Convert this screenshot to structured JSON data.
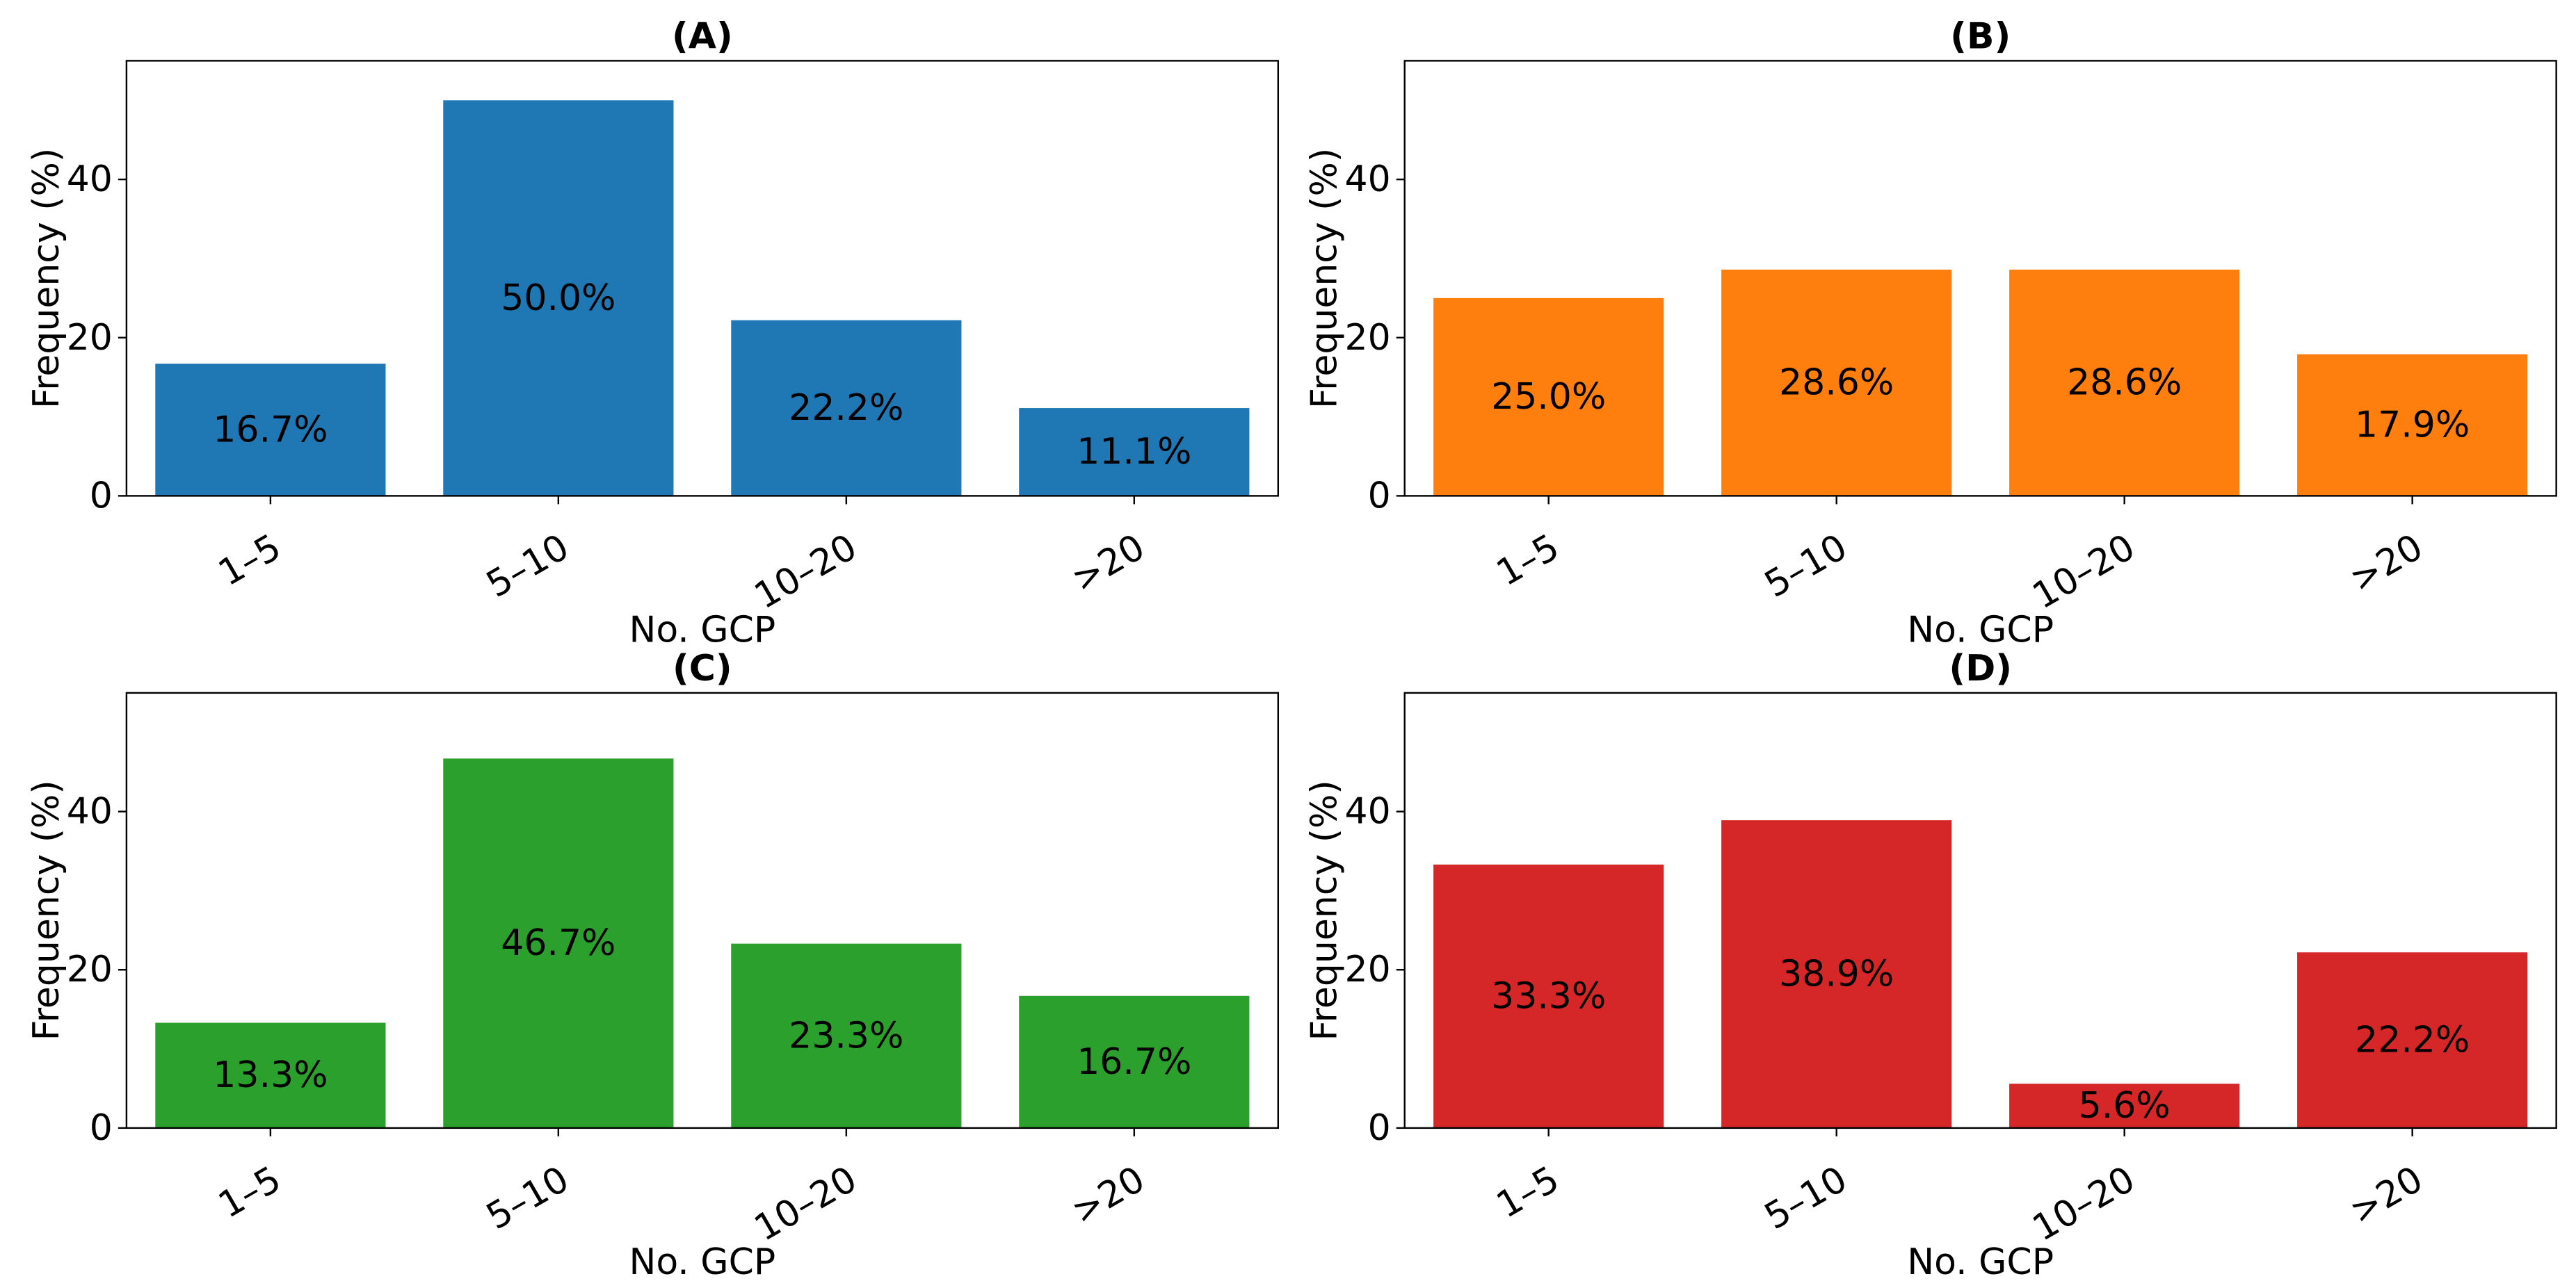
{
  "chart_data": [
    {
      "type": "bar",
      "title": "(A)",
      "xlabel": "No. GCP",
      "ylabel": "Frequency (%)",
      "categories": [
        "1–5",
        "5–10",
        "10–20",
        ">20"
      ],
      "values": [
        16.7,
        50.0,
        22.2,
        11.1
      ],
      "labels": [
        "16.7%",
        "50.0%",
        "22.2%",
        "11.1%"
      ],
      "yticks": [
        "0",
        "20",
        "40"
      ],
      "ylim": [
        0,
        55
      ],
      "color": "#1f77b4",
      "grid": false
    },
    {
      "type": "bar",
      "title": "(B)",
      "xlabel": "No. GCP",
      "ylabel": "Frequency (%)",
      "categories": [
        "1–5",
        "5–10",
        "10–20",
        ">20"
      ],
      "values": [
        25.0,
        28.6,
        28.6,
        17.9
      ],
      "labels": [
        "25.0%",
        "28.6%",
        "28.6%",
        "17.9%"
      ],
      "yticks": [
        "0",
        "20",
        "40"
      ],
      "ylim": [
        0,
        55
      ],
      "color": "#ff7f0e",
      "grid": false
    },
    {
      "type": "bar",
      "title": "(C)",
      "xlabel": "No. GCP",
      "ylabel": "Frequency (%)",
      "categories": [
        "1–5",
        "5–10",
        "10–20",
        ">20"
      ],
      "values": [
        13.3,
        46.7,
        23.3,
        16.7
      ],
      "labels": [
        "13.3%",
        "46.7%",
        "23.3%",
        "16.7%"
      ],
      "yticks": [
        "0",
        "20",
        "40"
      ],
      "ylim": [
        0,
        55
      ],
      "color": "#2ca02c",
      "grid": false
    },
    {
      "type": "bar",
      "title": "(D)",
      "xlabel": "No. GCP",
      "ylabel": "Frequency (%)",
      "categories": [
        "1–5",
        "5–10",
        "10–20",
        ">20"
      ],
      "values": [
        33.3,
        38.9,
        5.6,
        22.2
      ],
      "labels": [
        "33.3%",
        "38.9%",
        "5.6%",
        "22.2%"
      ],
      "yticks": [
        "0",
        "20",
        "40"
      ],
      "ylim": [
        0,
        55
      ],
      "color": "#d62728",
      "grid": false
    }
  ]
}
